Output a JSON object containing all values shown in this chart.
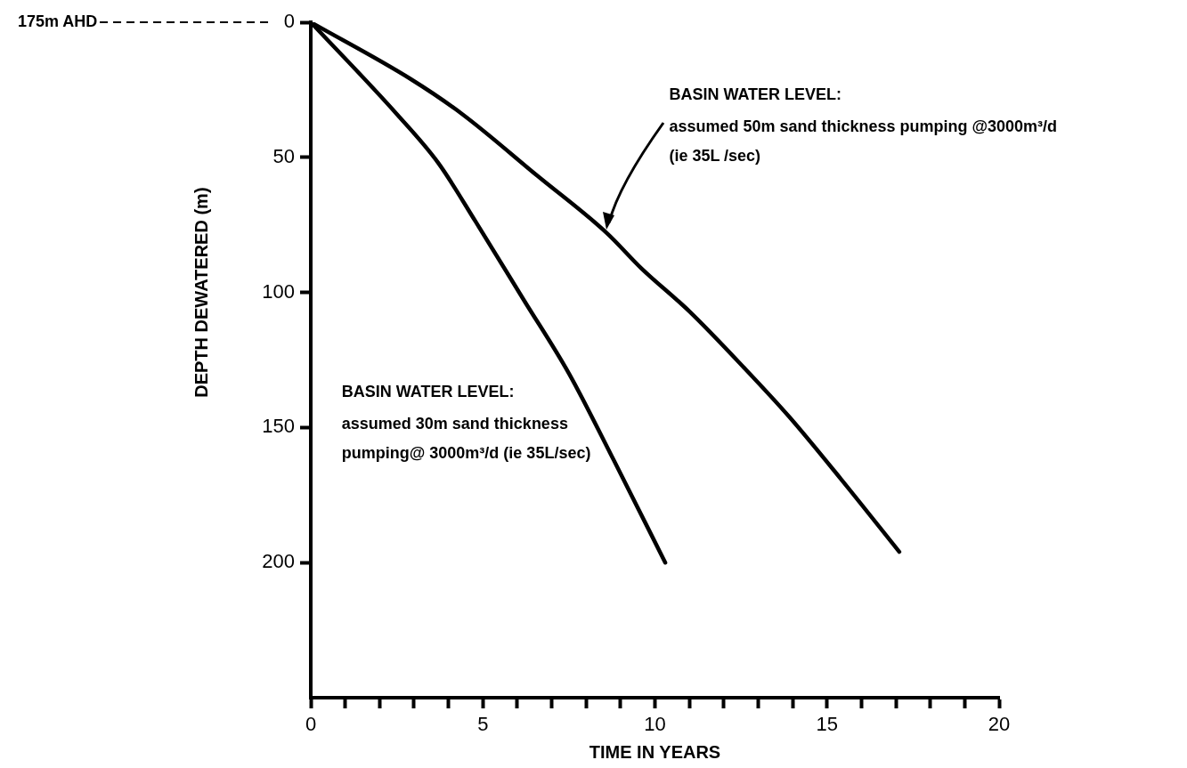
{
  "chart_data": {
    "type": "line",
    "xlabel": "TIME IN YEARS",
    "ylabel": "DEPTH DEWATERED (m)",
    "xlim": [
      0,
      20
    ],
    "xticks": [
      0,
      {
        "value": 1,
        "label": null
      },
      {
        "value": 2,
        "label": null
      },
      {
        "value": 3,
        "label": null
      },
      {
        "value": 4,
        "label": null
      },
      5,
      {
        "value": 6,
        "label": null
      },
      {
        "value": 7,
        "label": null
      },
      {
        "value": 8,
        "label": null
      },
      {
        "value": 9,
        "label": null
      },
      10,
      {
        "value": 11,
        "label": null
      },
      {
        "value": 12,
        "label": null
      },
      {
        "value": 13,
        "label": null
      },
      {
        "value": 14,
        "label": null
      },
      15,
      {
        "value": 16,
        "label": null
      },
      {
        "value": 17,
        "label": null
      },
      {
        "value": 18,
        "label": null
      },
      {
        "value": 19,
        "label": null
      },
      20
    ],
    "ylim": [
      250,
      0
    ],
    "yticks": [
      0,
      50,
      100,
      150,
      200
    ],
    "marker": "none",
    "line_style": "solid",
    "series": [
      {
        "name": "BASIN WATER LEVEL: assumed 30m sand thickness pumping@ 3000m³/d (ie 35L/sec)",
        "color": "#000000",
        "x": [
          0,
          2.5,
          3.7,
          4.8,
          6.2,
          7.5,
          8.8,
          10.3
        ],
        "values": [
          0,
          34,
          52,
          74,
          103,
          130,
          162,
          200
        ]
      },
      {
        "color": "#000000",
        "x": [
          0,
          2.9,
          4.4,
          6.6,
          8.6,
          9.6,
          11,
          12.6,
          13.9,
          15.4,
          17.1
        ],
        "values": [
          0,
          21,
          34,
          57,
          78,
          91,
          107,
          128,
          146,
          169,
          196
        ]
      }
    ],
    "annotations": [
      "175m AHD",
      "BASIN WATER LEVEL: assumed 50m sand thickness pumping @3000m³/d (ie 35L /sec)"
    ]
  }
}
